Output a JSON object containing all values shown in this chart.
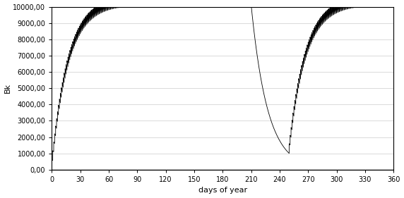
{
  "title": "",
  "xlabel": "days of year",
  "ylabel": "Bk",
  "xlim": [
    0,
    360
  ],
  "ylim": [
    0,
    10000
  ],
  "xticks": [
    0,
    30,
    60,
    90,
    120,
    150,
    180,
    210,
    240,
    270,
    300,
    330,
    360
  ],
  "yticks": [
    0,
    1000,
    2000,
    3000,
    4000,
    5000,
    6000,
    7000,
    8000,
    9000,
    10000
  ],
  "line_color": "#000000",
  "background_color": "#ffffff",
  "holiday_start": 210,
  "holiday_end": 250,
  "T_half_days": 12,
  "Q_pulse": 600,
  "points_per_day": 20
}
